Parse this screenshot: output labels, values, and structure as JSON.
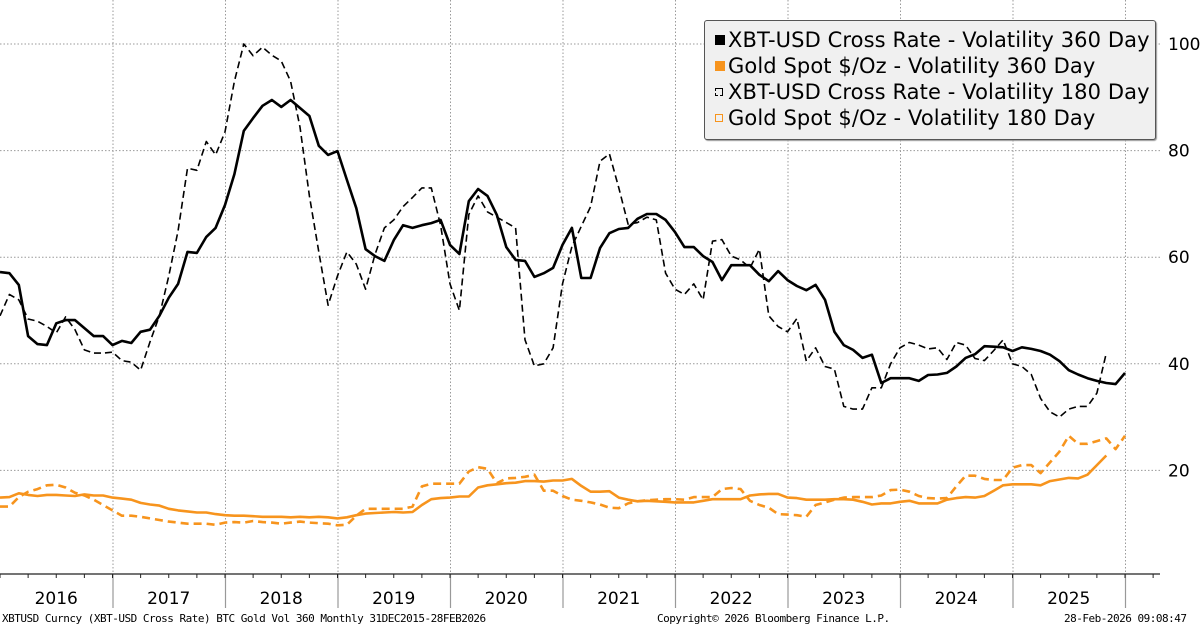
{
  "chart_data": {
    "type": "line",
    "title": "",
    "xlabel": "",
    "ylabel": "",
    "ylim": [
      0,
      105
    ],
    "yticks": [
      20,
      40,
      60,
      80,
      100
    ],
    "y_axis_side": "right",
    "grid": true,
    "legend_position": "top-right",
    "x_start": "Dec 2015",
    "x_end": "Feb 2026",
    "frequency": "Monthly",
    "year_labels": [
      "2016",
      "2017",
      "2018",
      "2019",
      "2020",
      "2021",
      "2022",
      "2023",
      "2024",
      "2025"
    ],
    "series": [
      {
        "name": "XBT-USD Cross Rate - Volatility 360 Day",
        "color": "#000000",
        "style": "solid",
        "values": [
          57.2,
          57.0,
          54.8,
          45.2,
          43.7,
          43.5,
          47.6,
          48.2,
          48.2,
          46.7,
          45.2,
          45.2,
          43.5,
          44.3,
          43.9,
          46.0,
          46.4,
          49.0,
          52.4,
          55.0,
          61.0,
          60.8,
          63.8,
          65.5,
          69.8,
          75.6,
          83.7,
          86.1,
          88.4,
          89.5,
          88.2,
          89.5,
          88.0,
          86.5,
          80.9,
          79.2,
          79.9,
          74.5,
          69.2,
          61.5,
          60.2,
          59.3,
          63.2,
          66.0,
          65.5,
          66.0,
          66.4,
          67.0,
          62.3,
          60.6,
          70.5,
          72.8,
          71.5,
          67.9,
          61.9,
          59.5,
          59.3,
          56.3,
          57.0,
          58.0,
          62.3,
          65.5,
          56.1,
          56.1,
          61.7,
          64.5,
          65.3,
          65.5,
          67.2,
          68.1,
          68.1,
          67.0,
          64.7,
          61.9,
          61.9,
          60.2,
          59.1,
          55.7,
          58.5,
          58.5,
          58.5,
          56.7,
          55.5,
          57.4,
          55.7,
          54.6,
          53.8,
          54.8,
          52.0,
          46.0,
          43.5,
          42.6,
          41.1,
          41.7,
          36.4,
          37.3,
          37.3,
          37.3,
          36.8,
          37.9,
          38.0,
          38.3,
          39.5,
          41.1,
          41.8,
          43.3,
          43.2,
          43.1,
          42.4,
          43.1,
          42.8,
          42.4,
          41.7,
          40.5,
          38.8,
          38.0,
          37.3,
          36.8,
          36.4,
          36.2,
          38.3
        ]
      },
      {
        "name": "Gold Spot $/Oz - Volatility 360 Day",
        "color": "#f7941d",
        "style": "solid",
        "values": [
          14.9,
          15.0,
          15.7,
          15.4,
          15.2,
          15.4,
          15.4,
          15.3,
          15.2,
          15.5,
          15.3,
          15.3,
          14.9,
          14.7,
          14.5,
          13.9,
          13.6,
          13.4,
          12.8,
          12.5,
          12.3,
          12.1,
          12.1,
          11.8,
          11.6,
          11.5,
          11.5,
          11.4,
          11.3,
          11.3,
          11.3,
          11.2,
          11.3,
          11.2,
          11.3,
          11.2,
          11.0,
          11.2,
          11.6,
          11.9,
          12.0,
          12.1,
          12.2,
          12.1,
          12.2,
          13.5,
          14.6,
          14.8,
          14.9,
          15.1,
          15.1,
          16.8,
          17.2,
          17.4,
          17.6,
          17.7,
          18.0,
          18.0,
          17.9,
          18.1,
          18.1,
          18.4,
          17.1,
          16.0,
          16.0,
          16.1,
          14.9,
          14.5,
          14.2,
          14.3,
          14.2,
          14.1,
          14.0,
          14.0,
          14.0,
          14.3,
          14.6,
          14.6,
          14.6,
          14.6,
          15.3,
          15.5,
          15.6,
          15.6,
          14.9,
          14.8,
          14.5,
          14.5,
          14.5,
          14.6,
          14.6,
          14.5,
          14.1,
          13.6,
          13.8,
          13.8,
          14.1,
          14.3,
          13.8,
          13.8,
          13.8,
          14.5,
          14.8,
          15.0,
          14.9,
          15.2,
          16.2,
          17.2,
          17.4,
          17.4,
          17.4,
          17.2,
          18.0,
          18.3,
          18.6,
          18.5,
          19.2,
          21.0,
          22.8
        ]
      },
      {
        "name": "XBT-USD Cross Rate - Volatility 180 Day",
        "color": "#000000",
        "style": "dashed",
        "values": [
          49.0,
          53.0,
          52.0,
          48.4,
          48.0,
          47.0,
          45.8,
          48.8,
          46.4,
          42.6,
          42.0,
          42.0,
          42.2,
          40.6,
          40.3,
          38.8,
          44.1,
          49.0,
          56.5,
          65.0,
          76.7,
          76.3,
          81.7,
          79.2,
          83.5,
          93.0,
          100.0,
          97.8,
          99.4,
          97.9,
          96.8,
          93.0,
          84.4,
          71.5,
          61.0,
          51.0,
          56.5,
          61.0,
          58.7,
          54.0,
          60.5,
          65.5,
          67.0,
          69.5,
          71.2,
          73.0,
          73.0,
          66.0,
          55.0,
          50.0,
          68.0,
          71.5,
          68.5,
          67.5,
          66.5,
          65.5,
          44.5,
          39.6,
          40.0,
          43.0,
          55.0,
          62.0,
          65.8,
          69.5,
          78.0,
          79.4,
          73.0,
          66.2,
          66.5,
          67.5,
          67.0,
          57.0,
          54.0,
          53.0,
          55.0,
          52.0,
          63.0,
          63.3,
          60.2,
          59.5,
          58.0,
          61.5,
          49.0,
          47.0,
          46.0,
          48.5,
          40.5,
          43.0,
          39.5,
          39.0,
          32.0,
          31.5,
          31.5,
          35.5,
          35.5,
          40.0,
          43.0,
          44.0,
          43.5,
          42.8,
          43.0,
          40.8,
          44.0,
          43.5,
          41.0,
          40.6,
          42.5,
          44.5,
          40.0,
          39.5,
          38.0,
          33.5,
          31.0,
          30.0,
          31.5,
          32.0,
          32.0,
          34.5,
          42.0
        ]
      },
      {
        "name": "Gold Spot $/Oz - Volatility 180 Day",
        "color": "#f7941d",
        "style": "dashed",
        "values": [
          13.2,
          13.2,
          15.0,
          16.0,
          16.5,
          17.2,
          17.3,
          16.8,
          15.8,
          15.3,
          14.5,
          13.5,
          12.5,
          11.5,
          11.5,
          11.3,
          11.0,
          10.7,
          10.4,
          10.2,
          10.0,
          10.0,
          10.0,
          9.8,
          10.2,
          10.3,
          10.2,
          10.5,
          10.3,
          10.2,
          10.0,
          10.2,
          10.4,
          10.2,
          10.1,
          10.0,
          9.7,
          9.8,
          11.5,
          12.8,
          12.8,
          12.8,
          12.8,
          12.8,
          13.2,
          17.0,
          17.5,
          17.5,
          17.5,
          17.5,
          19.8,
          20.6,
          20.3,
          17.6,
          18.5,
          18.6,
          18.8,
          19.2,
          16.2,
          16.2,
          15.2,
          14.5,
          14.3,
          14.0,
          13.6,
          13.0,
          12.9,
          13.8,
          14.2,
          14.4,
          14.5,
          14.6,
          14.6,
          14.5,
          15.0,
          15.0,
          15.0,
          16.5,
          16.7,
          16.5,
          14.3,
          13.5,
          13.0,
          11.8,
          11.7,
          11.6,
          11.3,
          13.5,
          14.0,
          14.5,
          14.9,
          15.0,
          15.0,
          15.0,
          15.3,
          16.3,
          16.4,
          16.0,
          15.2,
          14.8,
          14.7,
          14.8,
          17.0,
          19.0,
          19.0,
          18.4,
          18.2,
          18.2,
          20.5,
          21.0,
          21.0,
          19.5,
          21.5,
          23.5,
          26.5,
          25.0,
          25.0,
          25.5,
          26.0,
          24.0,
          26.5
        ]
      }
    ]
  },
  "legend": {
    "items": [
      {
        "label": "XBT-USD Cross Rate - Volatility 360 Day",
        "marker": "solid-black"
      },
      {
        "label": "Gold Spot $/Oz - Volatility 360 Day",
        "marker": "solid-orange"
      },
      {
        "label": "XBT-USD Cross Rate - Volatility 180 Day",
        "marker": "hollow-black"
      },
      {
        "label": "Gold Spot $/Oz - Volatility 180 Day",
        "marker": "hollow-orange"
      }
    ]
  },
  "footer": {
    "source": "XBTUSD Curncy (XBT-USD Cross Rate) BTC Gold Vol 360 Monthly 31DEC2015-28FEB2026",
    "copyright": "Copyright© 2026 Bloomberg Finance L.P.",
    "timestamp": "28-Feb-2026 09:08:47"
  }
}
